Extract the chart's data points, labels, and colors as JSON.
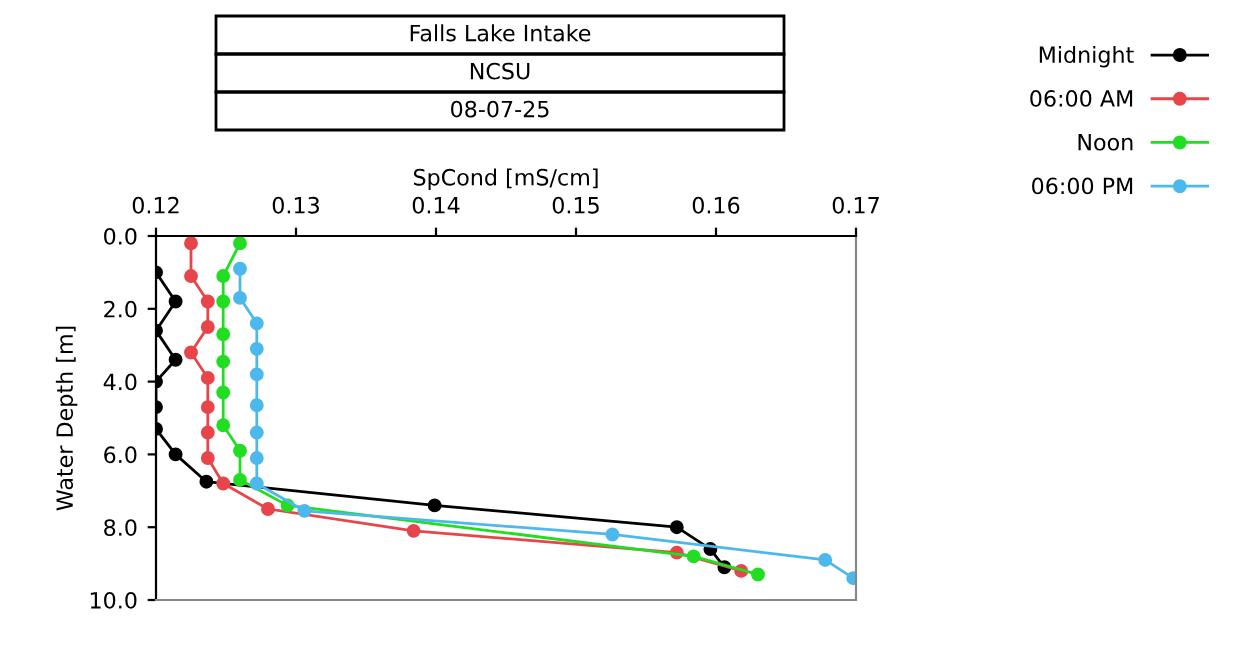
{
  "chart_data": {
    "type": "line",
    "title": "Falls Lake Intake",
    "subtitle": "NCSU",
    "annotations": [
      "08-07-25"
    ],
    "xlabel": "SpCond [mS/cm]",
    "ylabel": "Water Depth [m]",
    "xlim": [
      0.12,
      0.17
    ],
    "xticks": [
      0.12,
      0.13,
      0.14,
      0.15,
      0.16,
      0.17
    ],
    "ylim": [
      10,
      0
    ],
    "yticks": [
      {
        "value": 0,
        "label": "0.0"
      },
      {
        "value": 2,
        "label": "2.0"
      },
      {
        "value": 4,
        "label": "4.0"
      },
      {
        "value": 6,
        "label": "6.0"
      },
      {
        "value": 8,
        "label": "8.0"
      },
      {
        "value": 10,
        "label": "10.0"
      }
    ],
    "grid": false,
    "legend": "right",
    "marker": "circle",
    "line_style": "solid",
    "series": [
      {
        "name": "Midnight",
        "color": "#000000",
        "x": [
          0.12,
          0.1214,
          0.12,
          0.1214,
          0.12,
          0.12,
          0.12,
          0.1214,
          0.1236,
          0.1399,
          0.1572,
          0.1596,
          0.1606
        ],
        "values": [
          1.0,
          1.8,
          2.6,
          3.4,
          4.0,
          4.7,
          5.3,
          6.0,
          6.75,
          7.4,
          8.0,
          8.6,
          9.1
        ]
      },
      {
        "name": "06:00 AM",
        "color": "#e8454a",
        "x": [
          0.1225,
          0.1225,
          0.1237,
          0.1237,
          0.1225,
          0.1237,
          0.1237,
          0.1237,
          0.1237,
          0.1248,
          0.128,
          0.1384,
          0.1572,
          0.1618
        ],
        "values": [
          0.2,
          1.1,
          1.8,
          2.5,
          3.2,
          3.9,
          4.7,
          5.4,
          6.1,
          6.8,
          7.5,
          8.1,
          8.7,
          9.2
        ]
      },
      {
        "name": "Noon",
        "color": "#22dd22",
        "x": [
          0.126,
          0.1248,
          0.1248,
          0.1248,
          0.1248,
          0.1248,
          0.1248,
          0.126,
          0.126,
          0.1294,
          0.1584,
          0.163
        ],
        "values": [
          0.2,
          1.1,
          1.8,
          2.7,
          3.45,
          4.3,
          5.2,
          5.9,
          6.7,
          7.4,
          8.8,
          9.3
        ]
      },
      {
        "name": "06:00 PM",
        "color": "#4db8ec",
        "x": [
          0.126,
          0.126,
          0.1272,
          0.1272,
          0.1272,
          0.1272,
          0.1272,
          0.1272,
          0.1272,
          0.1306,
          0.1526,
          0.1678,
          0.1698
        ],
        "values": [
          0.9,
          1.7,
          2.4,
          3.1,
          3.8,
          4.65,
          5.4,
          6.1,
          6.8,
          7.55,
          8.2,
          8.9,
          9.4
        ]
      }
    ]
  }
}
